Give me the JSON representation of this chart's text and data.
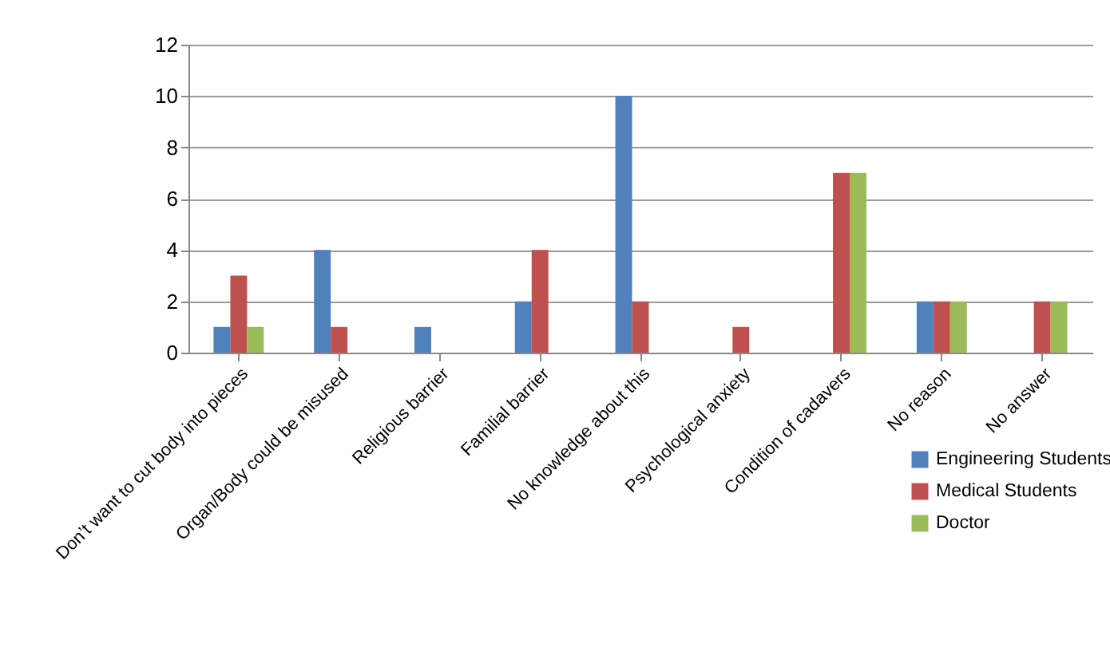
{
  "chart_data": {
    "type": "bar",
    "categories": [
      "Don’t want to cut body into pieces",
      "Organ/Body could be misused",
      "Religious barrier",
      "Familial barrier",
      "No knowledge about this",
      "Psychological anxiety",
      "Condition of cadavers",
      "No reason",
      "No answer"
    ],
    "series": [
      {
        "name": "Engineering Students",
        "color": "#4f81bd",
        "values": [
          1,
          4,
          1,
          2,
          10,
          0,
          0,
          2,
          0
        ]
      },
      {
        "name": "Medical Students",
        "color": "#c0504d",
        "values": [
          3,
          1,
          0,
          4,
          2,
          1,
          7,
          2,
          2
        ]
      },
      {
        "name": "Doctor",
        "color": "#9bbb59",
        "values": [
          1,
          0,
          0,
          0,
          0,
          0,
          7,
          2,
          2
        ]
      }
    ],
    "ylim": [
      0,
      12
    ],
    "yticks": [
      0,
      2,
      4,
      6,
      8,
      10,
      12
    ],
    "grid": "y",
    "legend": "bottom right"
  }
}
